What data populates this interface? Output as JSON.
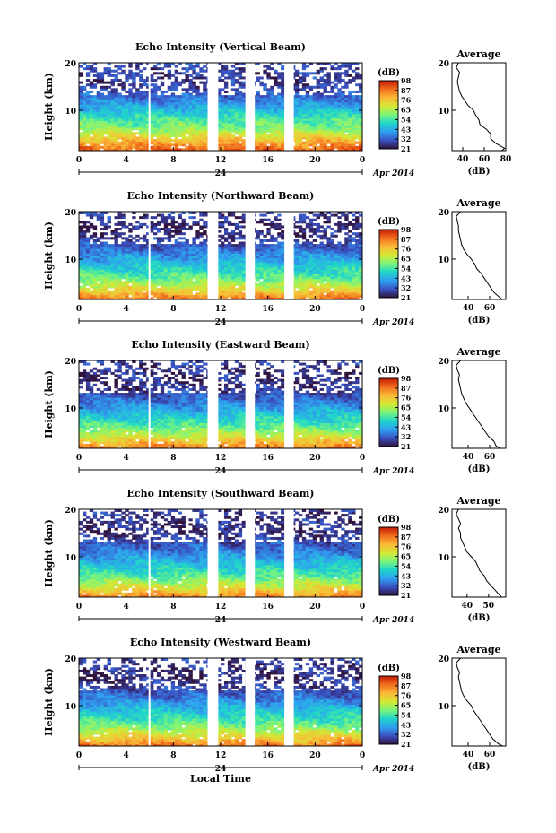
{
  "chart_data": [
    {
      "type": "heatmap",
      "title": "Echo Intensity (Vertical Beam)",
      "ylabel": "Height (km)",
      "xlabel": "",
      "x_ticks": [
        "0",
        "4",
        "8",
        "12",
        "16",
        "20",
        "0"
      ],
      "y_ticks": [
        "20",
        "10"
      ],
      "xlim": [
        0,
        24
      ],
      "ylim": [
        1.5,
        20
      ],
      "date_label": "24",
      "date_suffix": "Apr 2014",
      "colorbar": {
        "unit": "(dB)",
        "ticks": [
          "98",
          "87",
          "76",
          "65",
          "54",
          "43",
          "32",
          "21"
        ]
      },
      "data_gaps": [
        [
          5.9,
          6.0
        ],
        [
          10.9,
          11.8
        ],
        [
          14.1,
          14.9
        ],
        [
          17.4,
          18.2
        ]
      ],
      "band_values": [
        {
          "height": 2,
          "db": 88
        },
        {
          "height": 4,
          "db": 76
        },
        {
          "height": 6,
          "db": 62
        },
        {
          "height": 8,
          "db": 55
        },
        {
          "height": 10,
          "db": 46
        },
        {
          "height": 12,
          "db": 37
        },
        {
          "height": 14,
          "db": 30
        },
        {
          "height": 16,
          "db": 27
        },
        {
          "height": 18,
          "db": 28
        },
        {
          "height": 20,
          "db": 30
        }
      ],
      "profile": {
        "title": "Average",
        "xlabel": "(dB)",
        "x_ticks": [
          "40",
          "60",
          "80"
        ],
        "xlim": [
          30,
          80
        ],
        "y_ticks": [
          "20",
          "10"
        ],
        "heights": [
          1.5,
          2,
          3,
          4,
          5,
          6,
          7,
          8,
          9,
          10,
          11,
          12,
          13,
          14,
          15,
          16,
          17,
          18,
          19,
          20
        ],
        "values": [
          76,
          79,
          71,
          66,
          66,
          62,
          56,
          55,
          52,
          50,
          45,
          42,
          39,
          37,
          36,
          35,
          36,
          37,
          34,
          36
        ]
      }
    },
    {
      "type": "heatmap",
      "title": "Echo Intensity (Northward Beam)",
      "ylabel": "Height (km)",
      "xlabel": "",
      "x_ticks": [
        "0",
        "4",
        "8",
        "12",
        "16",
        "20",
        "0"
      ],
      "y_ticks": [
        "20",
        "10"
      ],
      "xlim": [
        0,
        24
      ],
      "ylim": [
        1.5,
        20
      ],
      "date_label": "24",
      "date_suffix": "Apr 2014",
      "colorbar": {
        "unit": "(dB)",
        "ticks": [
          "98",
          "87",
          "76",
          "65",
          "54",
          "43",
          "32",
          "21"
        ]
      },
      "data_gaps": [
        [
          5.9,
          6.0
        ],
        [
          10.9,
          11.8
        ],
        [
          14.1,
          14.9
        ],
        [
          17.4,
          18.2
        ]
      ],
      "band_values": [
        {
          "height": 2,
          "db": 85
        },
        {
          "height": 4,
          "db": 70
        },
        {
          "height": 6,
          "db": 58
        },
        {
          "height": 8,
          "db": 50
        },
        {
          "height": 10,
          "db": 42
        },
        {
          "height": 12,
          "db": 34
        },
        {
          "height": 14,
          "db": 28
        },
        {
          "height": 16,
          "db": 25
        },
        {
          "height": 18,
          "db": 26
        },
        {
          "height": 20,
          "db": 28
        }
      ],
      "profile": {
        "title": "Average",
        "xlabel": "(dB)",
        "x_ticks": [
          "40",
          "60"
        ],
        "xlim": [
          25,
          75
        ],
        "y_ticks": [
          "20",
          "10"
        ],
        "heights": [
          1.5,
          2,
          3,
          4,
          5,
          6,
          7,
          8,
          9,
          10,
          11,
          12,
          13,
          14,
          15,
          16,
          17,
          18,
          19,
          20
        ],
        "values": [
          72,
          69,
          64,
          61,
          58,
          55,
          52,
          48,
          46,
          43,
          39,
          36,
          34,
          33,
          32,
          31,
          31,
          30,
          29,
          33
        ]
      }
    },
    {
      "type": "heatmap",
      "title": "Echo Intensity (Eastward Beam)",
      "ylabel": "Height (km)",
      "xlabel": "",
      "x_ticks": [
        "0",
        "4",
        "8",
        "12",
        "16",
        "20",
        "0"
      ],
      "y_ticks": [
        "20",
        "10"
      ],
      "xlim": [
        0,
        24
      ],
      "ylim": [
        1.5,
        20
      ],
      "date_label": "24",
      "date_suffix": "Apr 2014",
      "colorbar": {
        "unit": "(dB)",
        "ticks": [
          "98",
          "87",
          "76",
          "65",
          "54",
          "43",
          "32",
          "21"
        ]
      },
      "data_gaps": [
        [
          5.9,
          6.0
        ],
        [
          10.9,
          11.8
        ],
        [
          14.1,
          14.9
        ],
        [
          17.4,
          18.2
        ]
      ],
      "band_values": [
        {
          "height": 2,
          "db": 84
        },
        {
          "height": 4,
          "db": 69
        },
        {
          "height": 6,
          "db": 57
        },
        {
          "height": 8,
          "db": 49
        },
        {
          "height": 10,
          "db": 41
        },
        {
          "height": 12,
          "db": 33
        },
        {
          "height": 14,
          "db": 27
        },
        {
          "height": 16,
          "db": 25
        },
        {
          "height": 18,
          "db": 26
        },
        {
          "height": 20,
          "db": 28
        }
      ],
      "profile": {
        "title": "Average",
        "xlabel": "(dB)",
        "x_ticks": [
          "40",
          "60"
        ],
        "xlim": [
          25,
          75
        ],
        "y_ticks": [
          "20",
          "10"
        ],
        "heights": [
          1.5,
          2,
          3,
          4,
          5,
          6,
          7,
          8,
          9,
          10,
          11,
          12,
          13,
          14,
          15,
          16,
          17,
          18,
          19,
          20
        ],
        "values": [
          70,
          66,
          64,
          59,
          56,
          53,
          50,
          47,
          44,
          41,
          38,
          36,
          34,
          33,
          32,
          31,
          32,
          30,
          29,
          33
        ]
      }
    },
    {
      "type": "heatmap",
      "title": "Echo Intensity (Southward Beam)",
      "ylabel": "Height (km)",
      "xlabel": "",
      "x_ticks": [
        "0",
        "4",
        "8",
        "12",
        "16",
        "20",
        "0"
      ],
      "y_ticks": [
        "20",
        "10"
      ],
      "xlim": [
        0,
        24
      ],
      "ylim": [
        1.5,
        20
      ],
      "date_label": "24",
      "date_suffix": "Apr 2014",
      "colorbar": {
        "unit": "(dB)",
        "ticks": [
          "98",
          "87",
          "76",
          "65",
          "54",
          "43",
          "32",
          "21"
        ]
      },
      "data_gaps": [
        [
          5.9,
          6.0
        ],
        [
          10.9,
          11.8
        ],
        [
          14.1,
          14.9
        ],
        [
          17.4,
          18.2
        ]
      ],
      "band_values": [
        {
          "height": 2,
          "db": 82
        },
        {
          "height": 4,
          "db": 68
        },
        {
          "height": 6,
          "db": 56
        },
        {
          "height": 8,
          "db": 48
        },
        {
          "height": 10,
          "db": 40
        },
        {
          "height": 12,
          "db": 33
        },
        {
          "height": 14,
          "db": 27
        },
        {
          "height": 16,
          "db": 25
        },
        {
          "height": 18,
          "db": 26
        },
        {
          "height": 20,
          "db": 28
        }
      ],
      "profile": {
        "title": "Average",
        "xlabel": "(dB)",
        "x_ticks": [
          "40",
          "50"
        ],
        "xlim": [
          33,
          58
        ],
        "y_ticks": [
          "20",
          "10"
        ],
        "heights": [
          1.5,
          2,
          3,
          4,
          5,
          6,
          7,
          8,
          9,
          10,
          11,
          12,
          13,
          14,
          15,
          16,
          17,
          18,
          19,
          20
        ],
        "values": [
          56,
          55,
          53,
          51,
          49,
          48,
          46,
          45,
          44,
          42,
          40,
          39,
          38,
          37,
          37,
          36,
          37,
          36,
          35,
          36
        ]
      }
    },
    {
      "type": "heatmap",
      "title": "Echo Intensity (Westward Beam)",
      "ylabel": "Height (km)",
      "xlabel": "Local Time",
      "x_ticks": [
        "0",
        "4",
        "8",
        "12",
        "16",
        "20",
        "0"
      ],
      "y_ticks": [
        "20",
        "10"
      ],
      "xlim": [
        0,
        24
      ],
      "ylim": [
        1.5,
        20
      ],
      "date_label": "24",
      "date_suffix": "Apr 2014",
      "colorbar": {
        "unit": "(dB)",
        "ticks": [
          "98",
          "87",
          "76",
          "65",
          "54",
          "43",
          "32",
          "21"
        ]
      },
      "data_gaps": [
        [
          5.9,
          6.0
        ],
        [
          10.9,
          11.8
        ],
        [
          14.1,
          14.9
        ],
        [
          17.4,
          18.2
        ]
      ],
      "band_values": [
        {
          "height": 2,
          "db": 84
        },
        {
          "height": 4,
          "db": 70
        },
        {
          "height": 6,
          "db": 58
        },
        {
          "height": 8,
          "db": 50
        },
        {
          "height": 10,
          "db": 42
        },
        {
          "height": 12,
          "db": 34
        },
        {
          "height": 14,
          "db": 28
        },
        {
          "height": 16,
          "db": 25
        },
        {
          "height": 18,
          "db": 26
        },
        {
          "height": 20,
          "db": 28
        }
      ],
      "profile": {
        "title": "Average",
        "xlabel": "(dB)",
        "x_ticks": [
          "40",
          "60"
        ],
        "xlim": [
          25,
          75
        ],
        "y_ticks": [
          "20",
          "10"
        ],
        "heights": [
          1.5,
          2,
          3,
          4,
          5,
          6,
          7,
          8,
          9,
          10,
          11,
          12,
          13,
          14,
          15,
          16,
          17,
          18,
          19,
          20
        ],
        "values": [
          72,
          68,
          63,
          60,
          57,
          54,
          51,
          48,
          45,
          43,
          39,
          36,
          34,
          33,
          32,
          31,
          32,
          30,
          29,
          33
        ]
      }
    }
  ]
}
